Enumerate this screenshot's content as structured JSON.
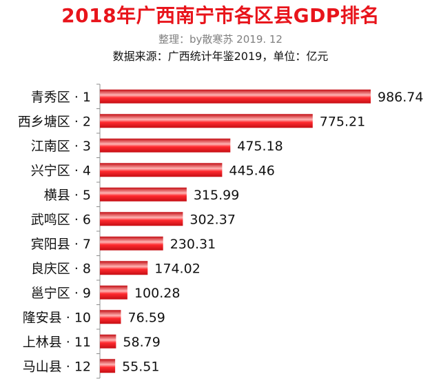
{
  "header": {
    "title": "2018年广西南宁市各区县GDP排名",
    "subtitle": "整理：by散寒苏 2019. 12",
    "source": "数据来源：广西统计年鉴2019，单位：亿元"
  },
  "colors": {
    "title": "#e8141b",
    "bar": "#ee1c24",
    "bar_highlight": "#ffb3b3",
    "axis": "#8c8c8c"
  },
  "chart_data": {
    "type": "bar",
    "orientation": "horizontal",
    "title": "2018年广西南宁市各区县GDP排名",
    "categories": [
      "青秀区 · 1",
      "西乡塘区 · 2",
      "江南区 · 3",
      "兴宁区 · 4",
      "横县 · 5",
      "武鸣区 · 6",
      "宾阳县 · 7",
      "良庆区 · 8",
      "邕宁区 · 9",
      "隆安县 · 10",
      "上林县 · 11",
      "马山县 · 12"
    ],
    "values": [
      986.74,
      775.21,
      475.18,
      445.46,
      315.99,
      302.37,
      230.31,
      174.02,
      100.28,
      76.59,
      58.79,
      55.51
    ],
    "value_labels": [
      "986.74",
      "775.21",
      "475.18",
      "445.46",
      "315.99",
      "302.37",
      "230.31",
      "174.02",
      "100.28",
      "76.59",
      "58.79",
      "55.51"
    ],
    "xlim": [
      0,
      986.74
    ],
    "grid": false,
    "legend": "none"
  }
}
